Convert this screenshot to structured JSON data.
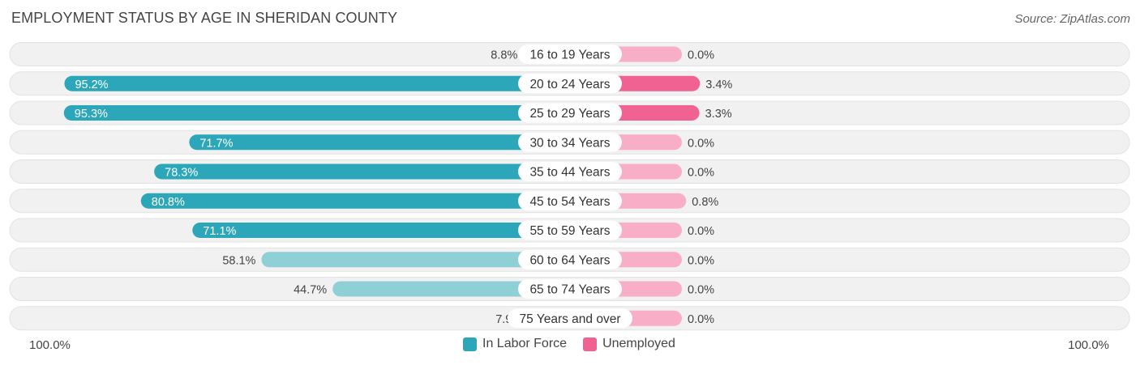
{
  "title": "EMPLOYMENT STATUS BY AGE IN SHERIDAN COUNTY",
  "source": "Source: ZipAtlas.com",
  "colors": {
    "labor_force": "#2ba7b9",
    "labor_force_light": "#8fd0d6",
    "unemployed": "#f06292",
    "unemployed_light": "#f8aec6",
    "row_bg": "#f1f1f1"
  },
  "chart_data": {
    "type": "bar",
    "orientation": "horizontal-diverging",
    "categories": [
      "16 to 19 Years",
      "20 to 24 Years",
      "25 to 29 Years",
      "30 to 34 Years",
      "35 to 44 Years",
      "45 to 54 Years",
      "55 to 59 Years",
      "60 to 64 Years",
      "65 to 74 Years",
      "75 Years and over"
    ],
    "series": [
      {
        "name": "In Labor Force",
        "values": [
          8.8,
          95.2,
          95.3,
          71.7,
          78.3,
          80.8,
          71.1,
          58.1,
          44.7,
          7.9
        ],
        "labels": [
          "8.8%",
          "95.2%",
          "95.3%",
          "71.7%",
          "78.3%",
          "80.8%",
          "71.1%",
          "58.1%",
          "44.7%",
          "7.9%"
        ]
      },
      {
        "name": "Unemployed",
        "values": [
          0.0,
          3.4,
          3.3,
          0.0,
          0.0,
          0.8,
          0.0,
          0.0,
          0.0,
          0.0
        ],
        "labels": [
          "0.0%",
          "3.4%",
          "3.3%",
          "0.0%",
          "0.0%",
          "0.8%",
          "0.0%",
          "0.0%",
          "0.0%",
          "0.0%"
        ]
      }
    ],
    "xlim": [
      -100,
      100
    ],
    "axis_labels": {
      "left": "100.0%",
      "right": "100.0%"
    },
    "legend_position": "bottom-center"
  }
}
